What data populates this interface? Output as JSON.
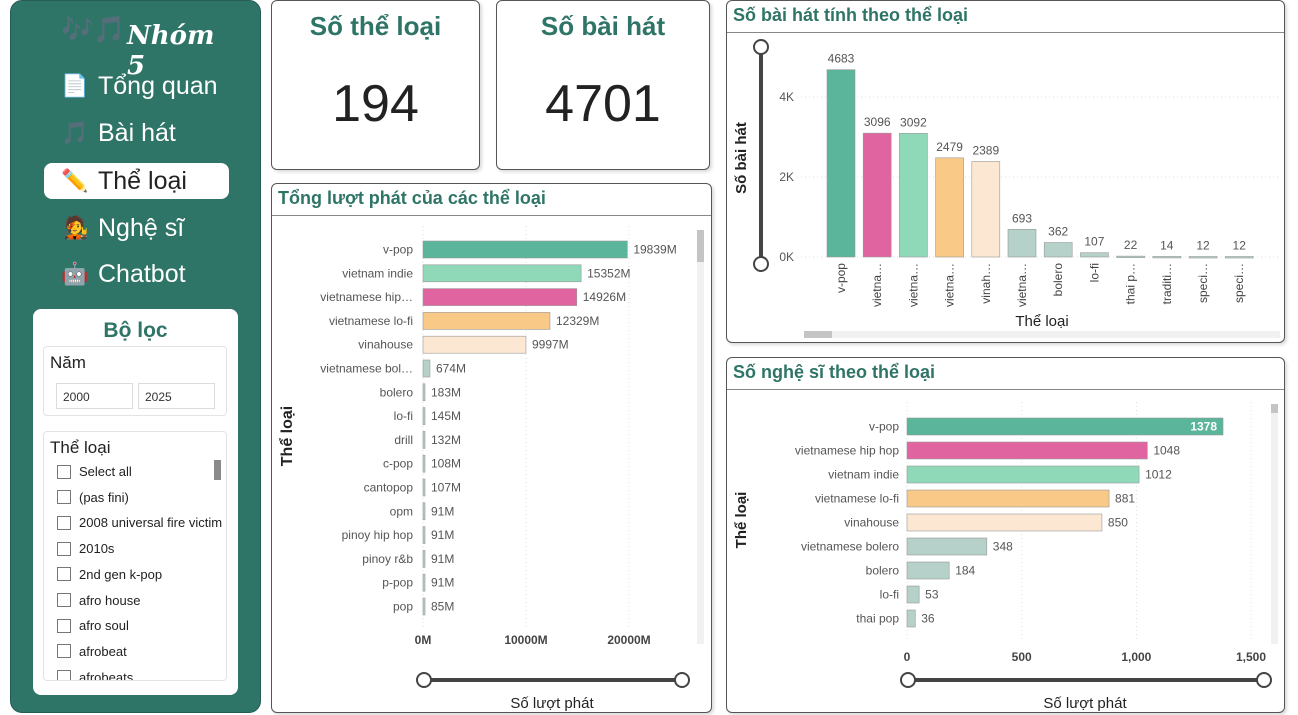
{
  "sidebar": {
    "logo_notes": "🎶🎵",
    "logo_text": "Nhóm 5",
    "nav": [
      {
        "label": "Tổng quan",
        "icon": "document-icon",
        "glyph": "📄",
        "active": false
      },
      {
        "label": "Bài hát",
        "icon": "music-note-icon",
        "glyph": "🎵",
        "active": false
      },
      {
        "label": "Thể loại",
        "icon": "pencil-icon",
        "glyph": "✏️",
        "active": true
      },
      {
        "label": "Nghệ sĩ",
        "icon": "singer-icon",
        "glyph": "🧑‍🎤",
        "active": false
      },
      {
        "label": "Chatbot",
        "icon": "robot-icon",
        "glyph": "🤖",
        "active": false
      }
    ]
  },
  "filter": {
    "title": "Bộ lọc",
    "year_label": "Năm",
    "year_from": "2000",
    "year_to": "2025",
    "genre_label": "Thể loại",
    "genres": [
      "Select all",
      "(pas fini)",
      "2008 universal fire victim",
      "2010s",
      "2nd gen k-pop",
      "afro house",
      "afro soul",
      "afrobeat",
      "afrobeats"
    ]
  },
  "kpi": {
    "genres_title": "Số thể loại",
    "genres_value": "194",
    "songs_title": "Số bài hát",
    "songs_value": "4701"
  },
  "colors": {
    "brand": "#2f7567",
    "vpop": "#5bb59b",
    "pink": "#e0649f",
    "mint": "#8fd9b9",
    "orange": "#f8c987",
    "cream": "#fce7d2",
    "grey_teal": "#b5d1c9"
  },
  "plays_chart": {
    "title": "Tổng lượt phát của các thể loại",
    "chart_data": {
      "type": "bar",
      "orientation": "horizontal",
      "categories": [
        "v-pop",
        "vietnam indie",
        "vietnamese hip…",
        "vietnamese lo-fi",
        "vinahouse",
        "vietnamese bol…",
        "bolero",
        "lo-fi",
        "drill",
        "c-pop",
        "cantopop",
        "opm",
        "pinoy hip hop",
        "pinoy r&b",
        "p-pop",
        "pop"
      ],
      "values": [
        19839,
        15352,
        14926,
        12329,
        9997,
        674,
        183,
        145,
        132,
        108,
        107,
        91,
        91,
        91,
        91,
        85
      ],
      "labels": [
        "19839M",
        "15352M",
        "14926M",
        "12329M",
        "9997M",
        "674M",
        "183M",
        "145M",
        "132M",
        "108M",
        "107M",
        "91M",
        "91M",
        "91M",
        "91M",
        "85M"
      ],
      "colors": [
        "#5bb59b",
        "#8fd9b9",
        "#e0649f",
        "#f8c987",
        "#fce7d2",
        "#b5d1c9",
        "#b5d1c9",
        "#b5d1c9",
        "#b5d1c9",
        "#b5d1c9",
        "#b5d1c9",
        "#b5d1c9",
        "#b5d1c9",
        "#b5d1c9",
        "#b5d1c9",
        "#b5d1c9"
      ],
      "xlabel": "Số lượt phát",
      "ylabel": "Thể loại",
      "xlim": [
        0,
        20000
      ],
      "xticks": [
        0,
        10000,
        20000
      ],
      "xtick_labels": [
        "0M",
        "10000M",
        "20000M"
      ]
    }
  },
  "songs_chart": {
    "title": "Số bài hát tính theo thể loại",
    "chart_data": {
      "type": "bar",
      "orientation": "vertical",
      "categories": [
        "v-pop",
        "vietna…",
        "vietna…",
        "vietna…",
        "vinah…",
        "vietna…",
        "bolero",
        "lo-fi",
        "thai p…",
        "traditi…",
        "speci…",
        "speci…"
      ],
      "values": [
        4683,
        3096,
        3092,
        2479,
        2389,
        693,
        362,
        107,
        22,
        14,
        12,
        12
      ],
      "colors": [
        "#5bb59b",
        "#e0649f",
        "#8fd9b9",
        "#f8c987",
        "#fce7d2",
        "#b5d1c9",
        "#b5d1c9",
        "#b5d1c9",
        "#b5d1c9",
        "#b5d1c9",
        "#b5d1c9",
        "#b5d1c9"
      ],
      "xlabel": "Thể loại",
      "ylabel": "Số bài hát",
      "ylim": [
        0,
        5000
      ],
      "yticks": [
        0,
        2000,
        4000
      ],
      "ytick_labels": [
        "0K",
        "2K",
        "4K"
      ]
    }
  },
  "artists_chart": {
    "title": "Số nghệ sĩ theo thể loại",
    "chart_data": {
      "type": "bar",
      "orientation": "horizontal",
      "categories": [
        "v-pop",
        "vietnamese hip hop",
        "vietnam indie",
        "vietnamese lo-fi",
        "vinahouse",
        "vietnamese bolero",
        "bolero",
        "lo-fi",
        "thai pop"
      ],
      "values": [
        1378,
        1048,
        1012,
        881,
        850,
        348,
        184,
        53,
        36
      ],
      "labels": [
        "1378",
        "1048",
        "1012",
        "881",
        "850",
        "348",
        "184",
        "53",
        "36"
      ],
      "colors": [
        "#5bb59b",
        "#e0649f",
        "#8fd9b9",
        "#f8c987",
        "#fce7d2",
        "#b5d1c9",
        "#b5d1c9",
        "#b5d1c9",
        "#b5d1c9"
      ],
      "xlabel": "Số lượt phát",
      "ylabel": "Thể loại",
      "xlim": [
        0,
        1500
      ],
      "xticks": [
        0,
        500,
        1000,
        1500
      ],
      "xtick_labels": [
        "0",
        "500",
        "1,000",
        "1,500"
      ]
    }
  }
}
